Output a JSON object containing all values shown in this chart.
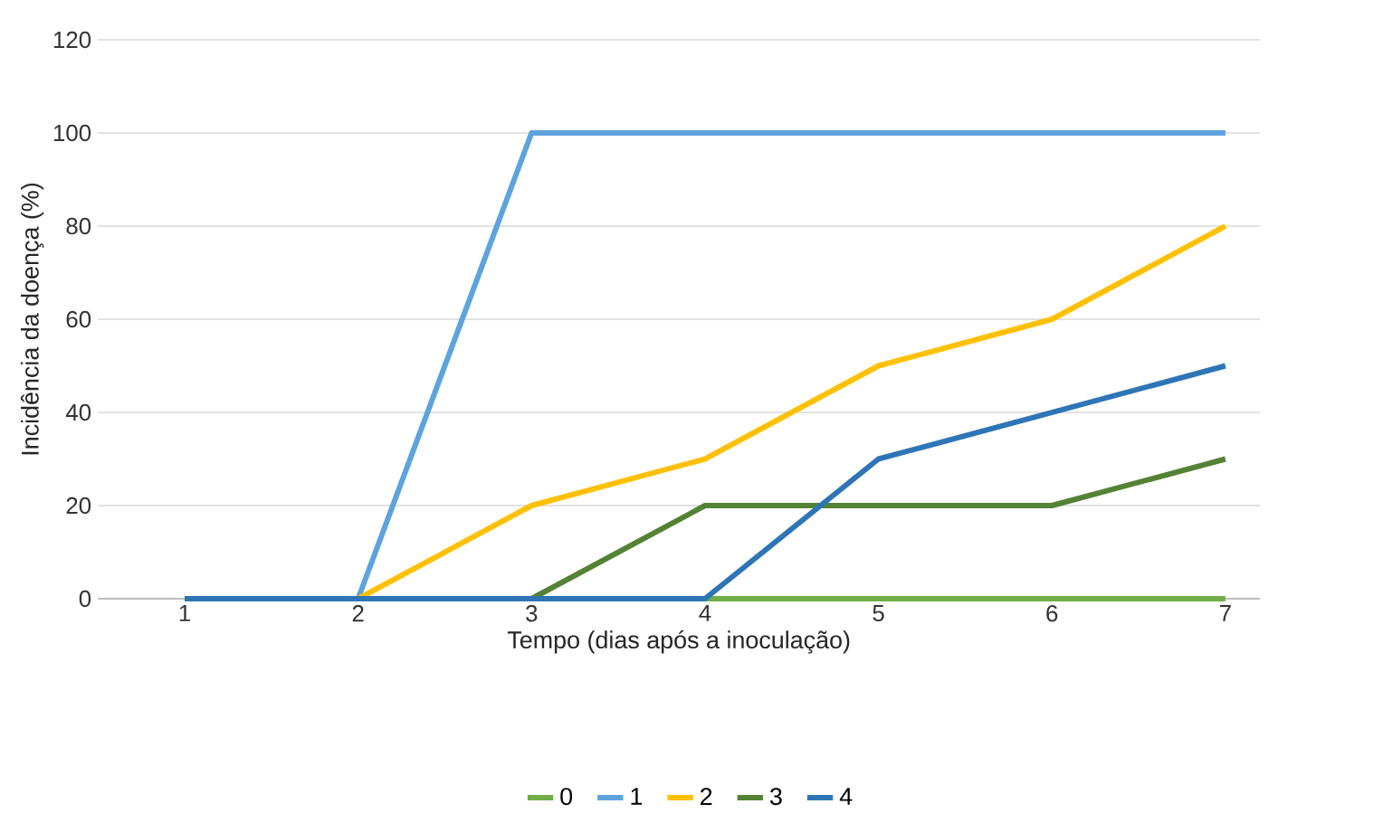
{
  "chart_data": {
    "type": "line",
    "xlabel": "Tempo (dias após a inoculação)",
    "ylabel": "Incidência da doença (%)",
    "categories": [
      "1",
      "2",
      "3",
      "4",
      "5",
      "6",
      "7"
    ],
    "series": [
      {
        "name": "0",
        "color": "#70ad47",
        "values": [
          null,
          null,
          null,
          0,
          0,
          0,
          0
        ]
      },
      {
        "name": "1",
        "color": "#5ea3dd",
        "values": [
          0,
          0,
          100,
          100,
          100,
          100,
          100
        ]
      },
      {
        "name": "2",
        "color": "#ffc000",
        "values": [
          0,
          0,
          20,
          30,
          50,
          60,
          80
        ]
      },
      {
        "name": "3",
        "color": "#548235",
        "values": [
          0,
          0,
          0,
          20,
          20,
          20,
          30
        ]
      },
      {
        "name": "4",
        "color": "#2e75b6",
        "values": [
          0,
          0,
          0,
          0,
          30,
          40,
          50
        ]
      }
    ],
    "ylim": [
      0,
      120
    ],
    "yticks": [
      0,
      20,
      40,
      60,
      80,
      100,
      120
    ],
    "grid": "y",
    "legend": "bottom",
    "line_style": "solid"
  }
}
